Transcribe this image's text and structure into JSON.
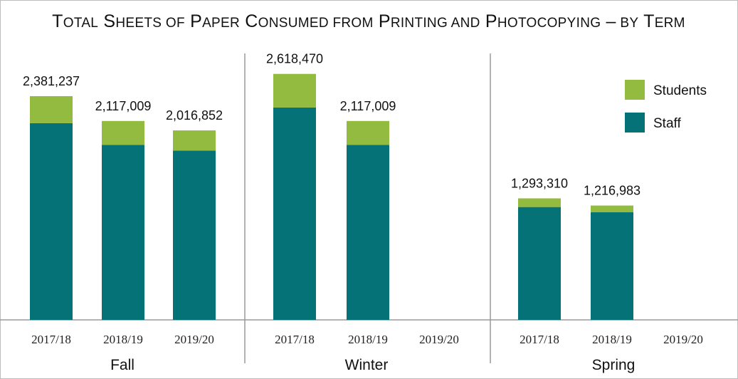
{
  "chart_data": {
    "type": "bar",
    "stacked": true,
    "title": "Total Sheets of Paper Consumed from Printing and Photocopying – by Term",
    "groups": [
      {
        "name": "Fall",
        "categories": [
          "2017/18",
          "2018/19",
          "2019/20"
        ],
        "staff": [
          2094000,
          1862000,
          1802000
        ],
        "students": [
          287237,
          255009,
          214852
        ],
        "totals": [
          "2,381,237",
          "2,117,009",
          "2,016,852"
        ]
      },
      {
        "name": "Winter",
        "categories": [
          "2017/18",
          "2018/19",
          "2019/20"
        ],
        "staff": [
          2261000,
          1862000,
          null
        ],
        "students": [
          357470,
          255009,
          null
        ],
        "totals": [
          "2,618,470",
          "2,117,009",
          ""
        ]
      },
      {
        "name": "Spring",
        "categories": [
          "2017/18",
          "2018/19",
          "2019/20"
        ],
        "staff": [
          1201000,
          1145000,
          null
        ],
        "students": [
          92310,
          71983,
          null
        ],
        "totals": [
          "1,293,310",
          "1,216,983",
          ""
        ]
      }
    ],
    "series": [
      {
        "name": "Students",
        "color": "#93bb3f"
      },
      {
        "name": "Staff",
        "color": "#047277"
      }
    ],
    "ylim": [
      0,
      2950000
    ],
    "grid": false,
    "legend": "top-right"
  }
}
